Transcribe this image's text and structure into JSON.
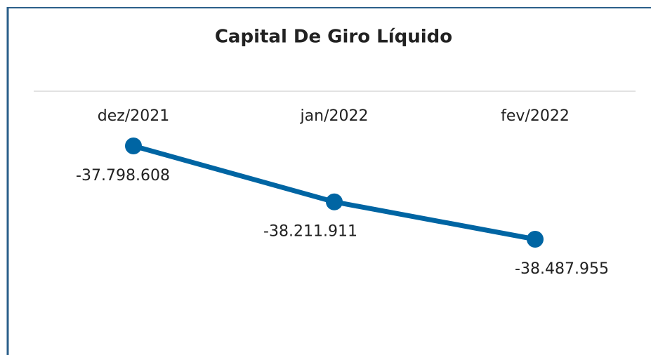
{
  "chart_data": {
    "type": "line",
    "title": "Capital De Giro Líquido",
    "categories": [
      "dez/2021",
      "jan/2022",
      "fev/2022"
    ],
    "series": [
      {
        "name": null,
        "color": "#0065a3",
        "values": [
          -37798608,
          -38211911,
          -38487955
        ],
        "value_labels": [
          "-37.798.608",
          "-38.211.911",
          "-38.487.955"
        ]
      }
    ]
  }
}
